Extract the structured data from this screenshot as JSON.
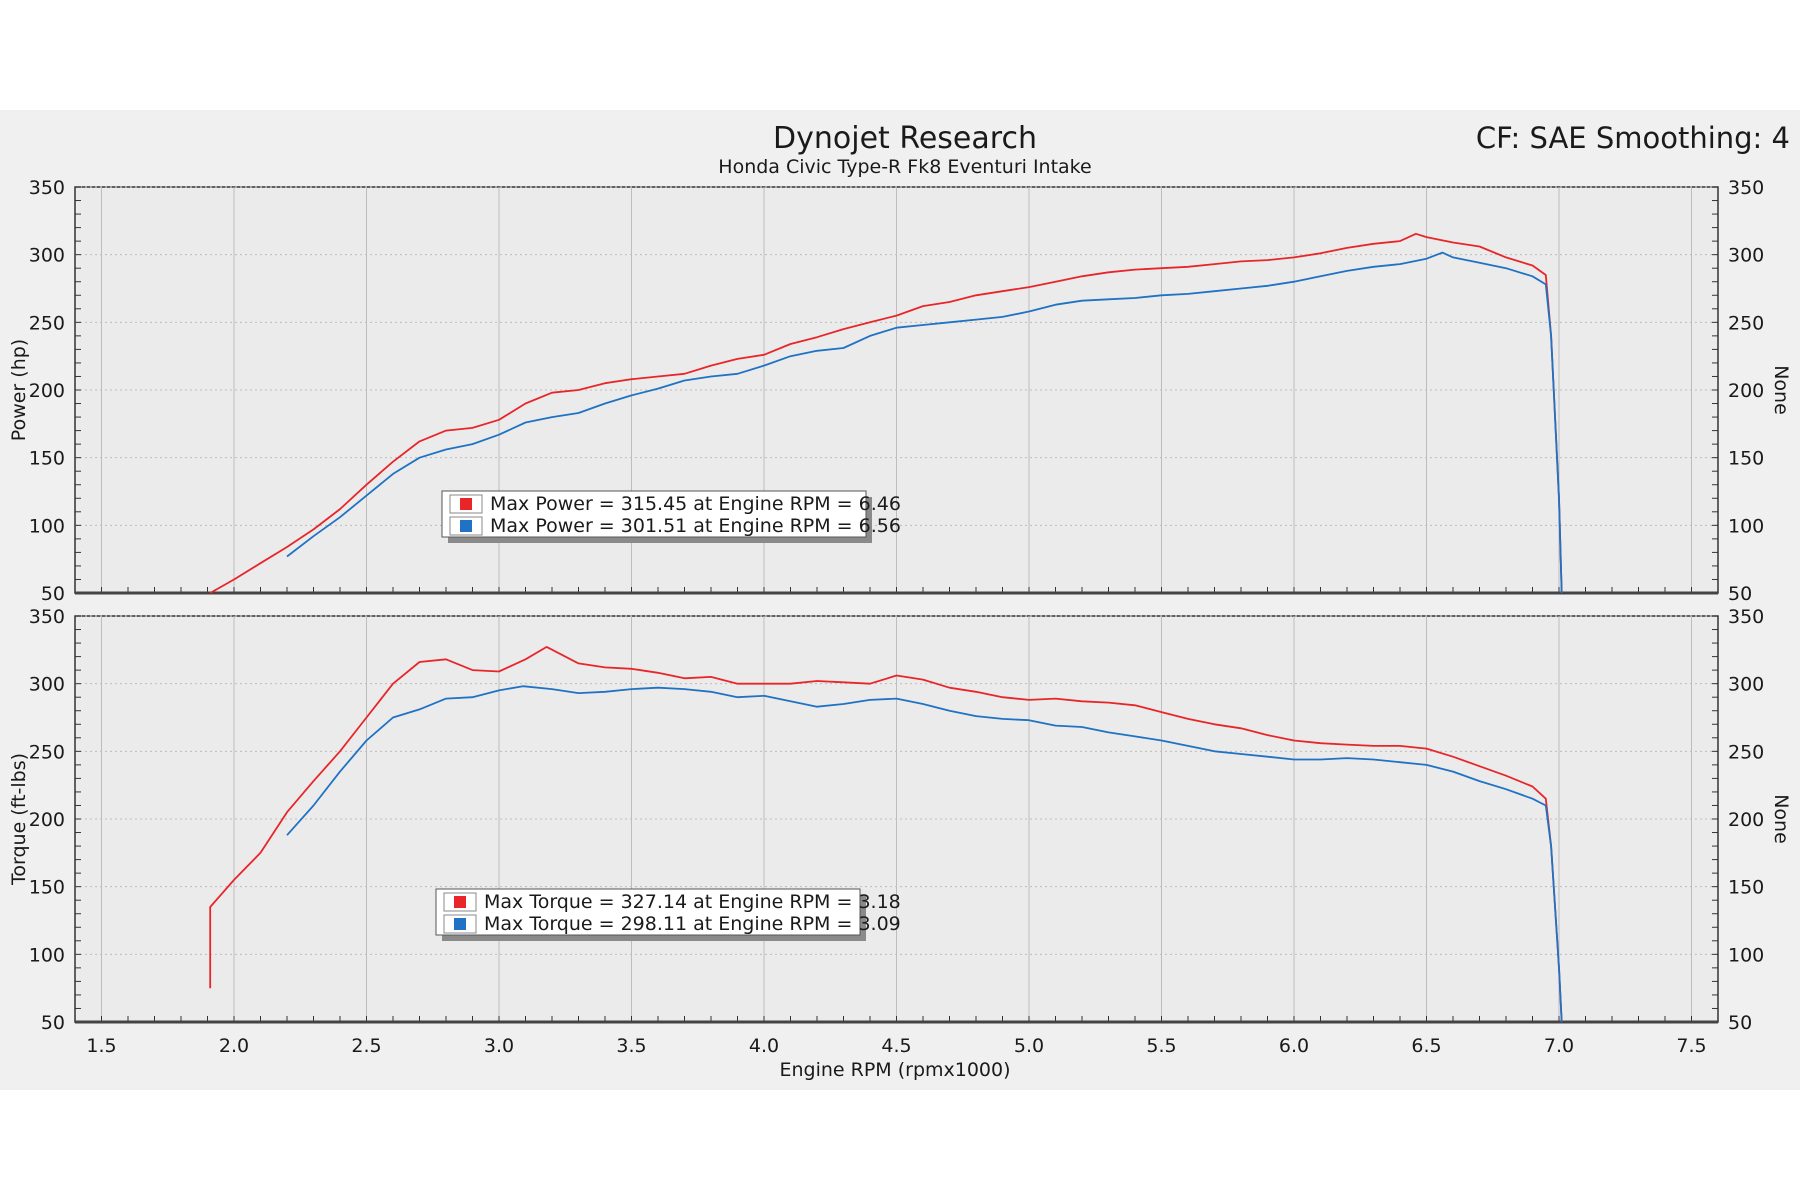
{
  "header": {
    "title": "Dynojet Research",
    "subtitle": "Honda Civic Type-R Fk8 Eventuri Intake",
    "cf": "CF: SAE Smoothing: 4"
  },
  "colors": {
    "run1": "#e8262a",
    "run2": "#1f72c4",
    "grid": "#bdbdbd",
    "frame": "#333333",
    "bg": "#f0f0f0"
  },
  "chart_data": [
    {
      "type": "line",
      "panel": "power",
      "xlabel": "Engine RPM (rpmx1000)",
      "ylabel": "Power (hp)",
      "right_label": "None",
      "xlim": [
        1.4,
        7.6
      ],
      "ylim": [
        50,
        350
      ],
      "xticks": [
        "1.5",
        "2.0",
        "2.5",
        "3.0",
        "3.5",
        "4.0",
        "4.5",
        "5.0",
        "5.5",
        "6.0",
        "6.5",
        "7.0",
        "7.5"
      ],
      "yticks": [
        "50",
        "100",
        "150",
        "200",
        "250",
        "300",
        "350"
      ],
      "grid": true,
      "legend": [
        {
          "text": "Max Power = 315.45 at Engine RPM = 6.46",
          "color": "#e8262a"
        },
        {
          "text": "Max Power = 301.51 at Engine RPM = 6.56",
          "color": "#1f72c4"
        }
      ],
      "series": [
        {
          "color": "#e8262a",
          "x": [
            1.91,
            2.0,
            2.1,
            2.2,
            2.3,
            2.4,
            2.5,
            2.6,
            2.7,
            2.8,
            2.9,
            3.0,
            3.1,
            3.2,
            3.3,
            3.4,
            3.5,
            3.6,
            3.7,
            3.8,
            3.9,
            4.0,
            4.1,
            4.2,
            4.3,
            4.4,
            4.5,
            4.6,
            4.7,
            4.8,
            4.9,
            5.0,
            5.1,
            5.2,
            5.3,
            5.4,
            5.5,
            5.6,
            5.7,
            5.8,
            5.9,
            6.0,
            6.1,
            6.2,
            6.3,
            6.4,
            6.46,
            6.5,
            6.6,
            6.7,
            6.8,
            6.9,
            6.95,
            6.97,
            7.0,
            7.01
          ],
          "y": [
            50,
            60,
            72,
            84,
            97,
            112,
            130,
            147,
            162,
            170,
            172,
            178,
            190,
            198,
            200,
            205,
            208,
            210,
            212,
            218,
            223,
            226,
            234,
            239,
            245,
            250,
            255,
            262,
            265,
            270,
            273,
            276,
            280,
            284,
            287,
            289,
            290,
            291,
            293,
            295,
            296,
            298,
            301,
            305,
            308,
            310,
            315.45,
            313,
            309,
            306,
            298,
            292,
            285,
            240,
            120,
            50
          ]
        },
        {
          "color": "#1f72c4",
          "x": [
            2.2,
            2.3,
            2.4,
            2.5,
            2.6,
            2.7,
            2.8,
            2.9,
            3.0,
            3.1,
            3.2,
            3.3,
            3.4,
            3.5,
            3.6,
            3.7,
            3.8,
            3.9,
            4.0,
            4.1,
            4.2,
            4.3,
            4.4,
            4.5,
            4.6,
            4.7,
            4.8,
            4.9,
            5.0,
            5.1,
            5.2,
            5.3,
            5.4,
            5.5,
            5.6,
            5.7,
            5.8,
            5.9,
            6.0,
            6.1,
            6.2,
            6.3,
            6.4,
            6.5,
            6.56,
            6.6,
            6.7,
            6.8,
            6.9,
            6.95,
            6.97,
            7.0,
            7.01
          ],
          "y": [
            77,
            92,
            106,
            122,
            138,
            150,
            156,
            160,
            167,
            176,
            180,
            183,
            190,
            196,
            201,
            207,
            210,
            212,
            218,
            225,
            229,
            231,
            240,
            246,
            248,
            250,
            252,
            254,
            258,
            263,
            266,
            267,
            268,
            270,
            271,
            273,
            275,
            277,
            280,
            284,
            288,
            291,
            293,
            297,
            301.51,
            298,
            294,
            290,
            284,
            278,
            240,
            120,
            50
          ]
        }
      ]
    },
    {
      "type": "line",
      "panel": "torque",
      "xlabel": "Engine RPM (rpmx1000)",
      "ylabel": "Torque (ft-lbs)",
      "right_label": "None",
      "xlim": [
        1.4,
        7.6
      ],
      "ylim": [
        50,
        350
      ],
      "xticks": [
        "1.5",
        "2.0",
        "2.5",
        "3.0",
        "3.5",
        "4.0",
        "4.5",
        "5.0",
        "5.5",
        "6.0",
        "6.5",
        "7.0",
        "7.5"
      ],
      "yticks": [
        "50",
        "100",
        "150",
        "200",
        "250",
        "300",
        "350"
      ],
      "grid": true,
      "legend": [
        {
          "text": "Max Torque = 327.14 at Engine RPM = 3.18",
          "color": "#e8262a"
        },
        {
          "text": "Max Torque = 298.11 at Engine RPM = 3.09",
          "color": "#1f72c4"
        }
      ],
      "series": [
        {
          "color": "#e8262a",
          "x": [
            1.91,
            1.91,
            2.0,
            2.1,
            2.2,
            2.3,
            2.4,
            2.5,
            2.6,
            2.7,
            2.8,
            2.9,
            3.0,
            3.1,
            3.18,
            3.3,
            3.4,
            3.5,
            3.6,
            3.7,
            3.8,
            3.9,
            4.0,
            4.1,
            4.2,
            4.3,
            4.4,
            4.5,
            4.6,
            4.7,
            4.8,
            4.9,
            5.0,
            5.1,
            5.2,
            5.3,
            5.4,
            5.5,
            5.6,
            5.7,
            5.8,
            5.9,
            6.0,
            6.1,
            6.2,
            6.3,
            6.4,
            6.5,
            6.6,
            6.7,
            6.8,
            6.9,
            6.95,
            6.97,
            7.0,
            7.01
          ],
          "y": [
            75,
            135,
            155,
            175,
            205,
            228,
            250,
            275,
            300,
            316,
            318,
            310,
            309,
            318,
            327.14,
            315,
            312,
            311,
            308,
            304,
            305,
            300,
            300,
            300,
            302,
            301,
            300,
            306,
            303,
            297,
            294,
            290,
            288,
            289,
            287,
            286,
            284,
            279,
            274,
            270,
            267,
            262,
            258,
            256,
            255,
            254,
            254,
            252,
            246,
            239,
            232,
            224,
            215,
            180,
            90,
            50
          ]
        },
        {
          "color": "#1f72c4",
          "x": [
            2.2,
            2.3,
            2.4,
            2.5,
            2.6,
            2.7,
            2.8,
            2.9,
            3.0,
            3.09,
            3.2,
            3.3,
            3.4,
            3.5,
            3.6,
            3.7,
            3.8,
            3.9,
            4.0,
            4.1,
            4.2,
            4.3,
            4.4,
            4.5,
            4.6,
            4.7,
            4.8,
            4.9,
            5.0,
            5.1,
            5.2,
            5.3,
            5.4,
            5.5,
            5.6,
            5.7,
            5.8,
            5.9,
            6.0,
            6.1,
            6.2,
            6.3,
            6.4,
            6.5,
            6.6,
            6.7,
            6.8,
            6.9,
            6.95,
            6.97,
            7.0,
            7.01
          ],
          "y": [
            188,
            210,
            235,
            258,
            275,
            281,
            289,
            290,
            295,
            298.11,
            296,
            293,
            294,
            296,
            297,
            296,
            294,
            290,
            291,
            287,
            283,
            285,
            288,
            289,
            285,
            280,
            276,
            274,
            273,
            269,
            268,
            264,
            261,
            258,
            254,
            250,
            248,
            246,
            244,
            244,
            245,
            244,
            242,
            240,
            235,
            228,
            222,
            215,
            210,
            180,
            90,
            50
          ]
        }
      ]
    }
  ]
}
